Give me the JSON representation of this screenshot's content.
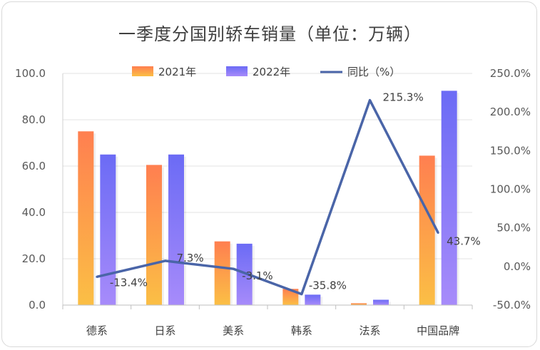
{
  "chart_data": {
    "type": "bar",
    "title": "一季度分国别轿车销量（单位：万辆）",
    "categories": [
      "德系",
      "日系",
      "美系",
      "韩系",
      "法系",
      "中国品牌"
    ],
    "series": [
      {
        "name": "2021年",
        "type": "bar",
        "axis": "left",
        "values": [
          75.0,
          60.5,
          27.5,
          7.0,
          0.8,
          64.5
        ]
      },
      {
        "name": "2022年",
        "type": "bar",
        "axis": "left",
        "values": [
          65.0,
          65.0,
          26.5,
          4.5,
          2.3,
          92.5
        ]
      },
      {
        "name": "同比（%）",
        "type": "line",
        "axis": "right",
        "values": [
          -13.4,
          7.3,
          -3.1,
          -35.8,
          215.3,
          43.7
        ],
        "labels": [
          "-13.4%",
          "7.3%",
          "-3.1%",
          "-35.8%",
          "215.3%",
          "43.7%"
        ]
      }
    ],
    "ylim": [
      0,
      100
    ],
    "yticks": [
      "0.0",
      "20.0",
      "40.0",
      "60.0",
      "80.0",
      "100.0"
    ],
    "y2lim": [
      -50,
      250
    ],
    "y2ticks": [
      "-50.0%",
      "0.0%",
      "50.0%",
      "100.0%",
      "150.0%",
      "200.0%",
      "250.0%"
    ],
    "legend_position": "top",
    "grid": true,
    "colors": {
      "bar2021_top": "#ff7f50",
      "bar2021_bottom": "#fbbf45",
      "bar2022_top": "#6b6bf5",
      "bar2022_bottom": "#a78bfa",
      "line": "#4a65a8",
      "grid": "#e3e3e3"
    }
  }
}
